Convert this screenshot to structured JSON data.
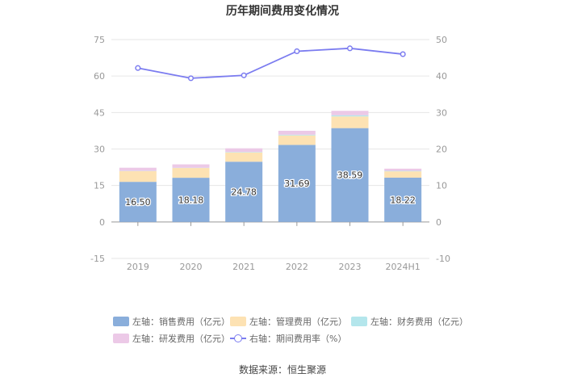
{
  "chart_data": {
    "type": "bar",
    "title": "历年期间费用变化情况",
    "categories": [
      "2019",
      "2020",
      "2021",
      "2022",
      "2023",
      "2024H1"
    ],
    "left_axis": {
      "min": -15,
      "max": 75,
      "ticks": [
        -15,
        0,
        15,
        30,
        45,
        60,
        75
      ]
    },
    "right_axis": {
      "min": -10,
      "max": 50,
      "ticks": [
        -10,
        0,
        10,
        20,
        30,
        40,
        50
      ]
    },
    "series": [
      {
        "name": "左轴：销售费用（亿元）",
        "axis": "left",
        "stack": true,
        "color": "#8aaedb",
        "values": [
          16.5,
          18.18,
          24.78,
          31.69,
          38.59,
          18.22
        ],
        "labels": [
          "16.50",
          "18.18",
          "24.78",
          "31.69",
          "38.59",
          "18.22"
        ]
      },
      {
        "name": "左轴：管理费用（亿元）",
        "axis": "left",
        "stack": true,
        "color": "#fde2b3",
        "values": [
          4.4,
          4.0,
          3.8,
          3.9,
          4.8,
          2.6
        ]
      },
      {
        "name": "左轴：财务费用（亿元）",
        "axis": "left",
        "stack": true,
        "color": "#b4e6ec",
        "values": [
          0.1,
          0.1,
          0.2,
          0.3,
          0.5,
          0.2
        ]
      },
      {
        "name": "左轴：研发费用（亿元）",
        "axis": "left",
        "stack": true,
        "color": "#ecc9e7",
        "values": [
          1.3,
          1.4,
          1.5,
          1.6,
          1.8,
          0.9
        ]
      },
      {
        "name": "右轴：期间费用率（%）",
        "axis": "right",
        "type": "line",
        "color": "#7b7cf0",
        "values": [
          42.2,
          39.4,
          40.2,
          46.8,
          47.6,
          46.0
        ]
      }
    ]
  },
  "source": "数据来源：恒生聚源"
}
